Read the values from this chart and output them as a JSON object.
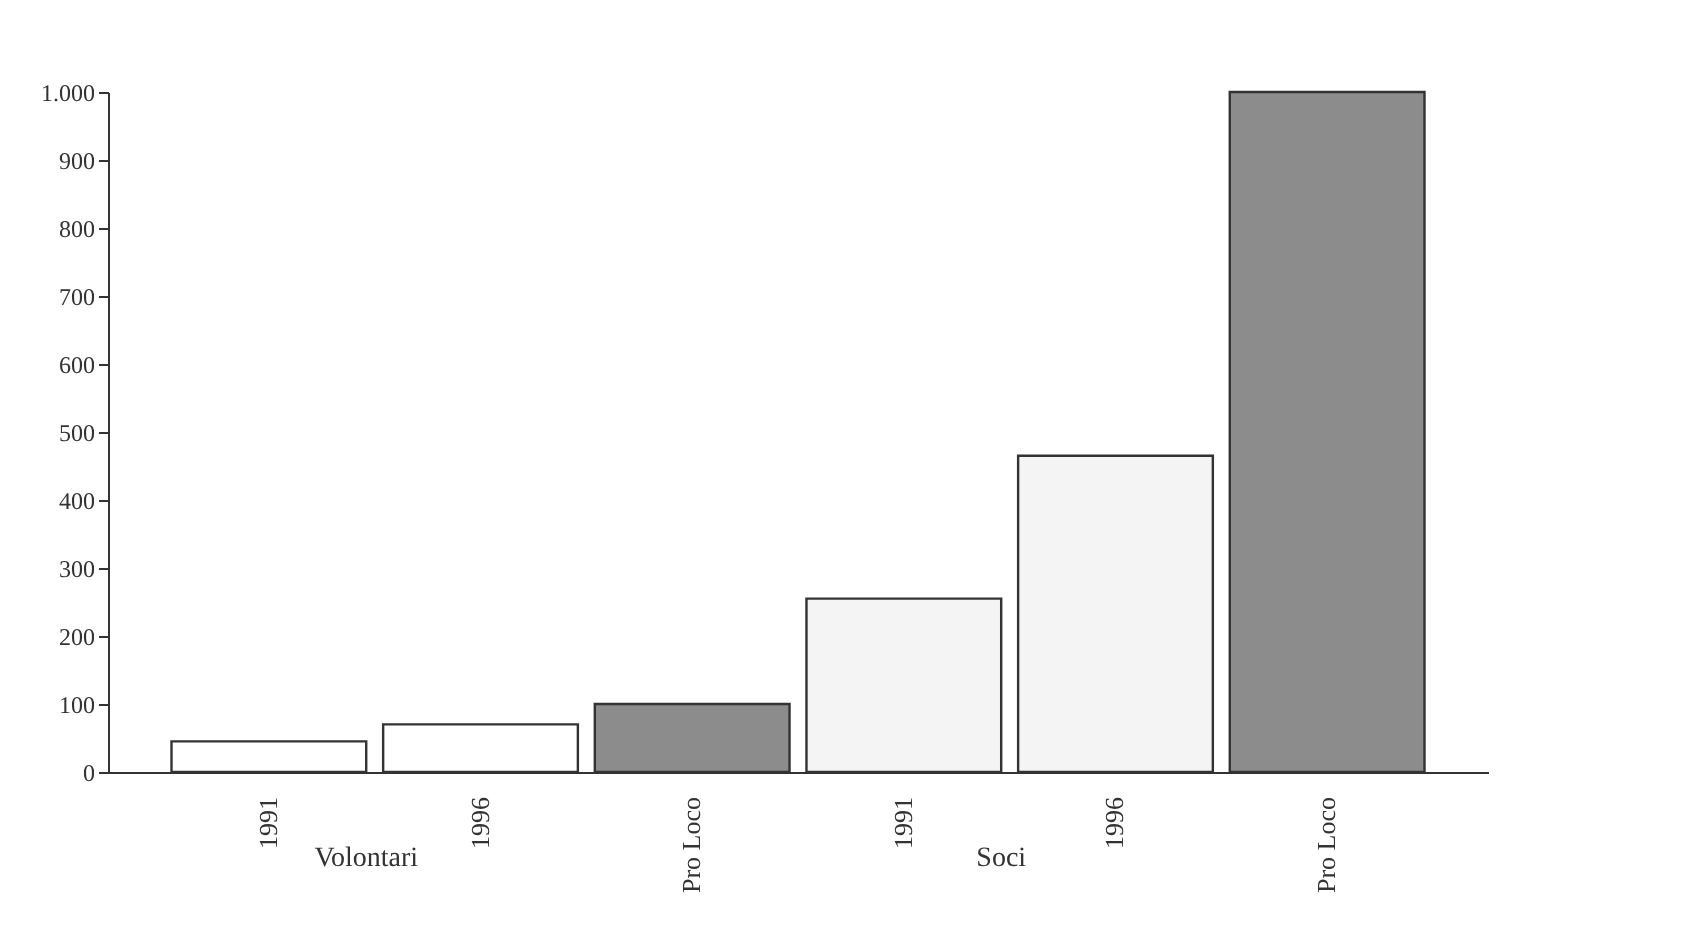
{
  "chart_data": {
    "type": "bar",
    "categories": [
      "1991",
      "1996",
      "Pro Loco",
      "1991",
      "1996",
      "Pro Loco"
    ],
    "values": [
      45,
      70,
      100,
      255,
      465,
      1000
    ],
    "colors": [
      "#ffffff",
      "#ffffff",
      "#8c8c8c",
      "#f4f4f4",
      "#f4f4f4",
      "#8c8c8c"
    ],
    "ylim": [
      0,
      1000
    ],
    "yticks": [
      0,
      100,
      200,
      300,
      400,
      500,
      600,
      700,
      800,
      900,
      {
        "value": 1000,
        "label": "1.000"
      }
    ],
    "annotations": [
      "Volontari",
      "Soci"
    ],
    "grid": false
  }
}
